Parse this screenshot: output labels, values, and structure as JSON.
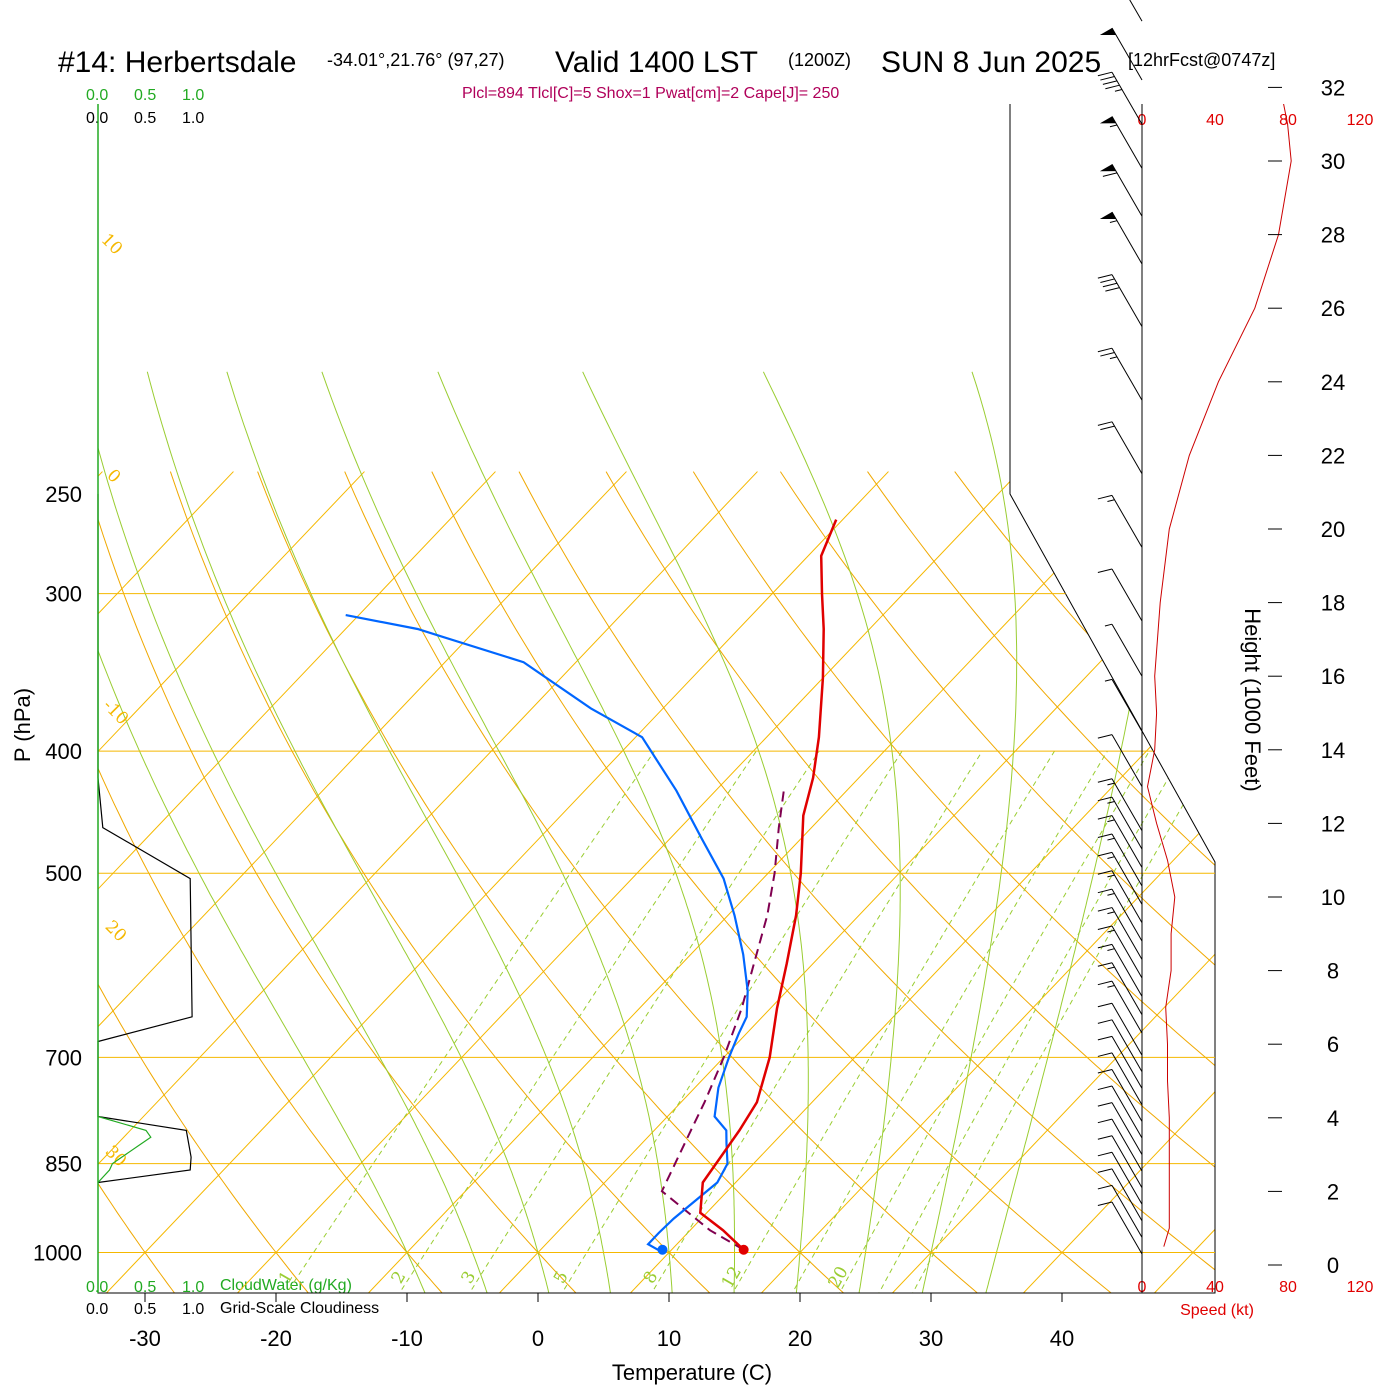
{
  "header": {
    "station": "#14: Herbertsdale",
    "coords": "-34.01°,21.76° (97,27)",
    "valid": "Valid 1400 LST",
    "utc": "(1200Z)",
    "date": "SUN 8 Jun 2025",
    "forecast": "[12hrFcst@0747z]",
    "params": "Plcl=894 Tlcl[C]=5 Shox=1 Pwat[cm]=2 Cape[J]= 250"
  },
  "colors": {
    "temperature": "#e00000",
    "dewpoint": "#0066ff",
    "parcel": "#800050",
    "isotherm": "#f5b800",
    "dry_adiabat": "#f0a800",
    "moist_adiabat": "#9acd32",
    "mixing_ratio": "#9acd32",
    "cloud_water": "#22aa22",
    "cloudiness": "#000000",
    "wind_speed": "#cc0000"
  },
  "cloud_scale": {
    "top_green": [
      "0.0",
      "0.5",
      "1.0"
    ],
    "top_black": [
      "0.0",
      "0.5",
      "1.0"
    ],
    "bottom_green": [
      "0.0",
      "0.5",
      "1.0"
    ],
    "bottom_green_label": "CloudWater (g/Kg)",
    "bottom_black": [
      "0.0",
      "0.5",
      "1.0"
    ],
    "bottom_black_label": "Grid-Scale Cloudiness"
  },
  "speed_scale": {
    "top": [
      "0",
      "40",
      "80",
      "120"
    ],
    "bottom": [
      "0",
      "40",
      "80",
      "120"
    ],
    "label": "Speed (kt)"
  },
  "chart_data": {
    "type": "line",
    "xlabel": "Temperature (C)",
    "ylabel": "P (hPa)",
    "y2label": "Height (1000 Feet)",
    "x_ticks": [
      -30,
      -20,
      -10,
      0,
      10,
      20,
      30,
      40
    ],
    "p_ticks": [
      250,
      300,
      400,
      500,
      700,
      850,
      1000
    ],
    "height_ticks": [
      0,
      2,
      4,
      6,
      8,
      10,
      12,
      14,
      16,
      18,
      20,
      22,
      24,
      26,
      28,
      30,
      32
    ],
    "isotherm_labels": [
      "10",
      "0",
      "-10",
      "20",
      "30",
      "0",
      "10",
      "20",
      "30"
    ],
    "mixing_ratio_labels": [
      "1",
      "2",
      "3",
      "5",
      "8",
      "12",
      "20"
    ],
    "temperature": {
      "name": "Temperature",
      "p": [
        995,
        960,
        930,
        880,
        800,
        760,
        700,
        640,
        590,
        540,
        500,
        450,
        420,
        390,
        350,
        320,
        300,
        280,
        262
      ],
      "t": [
        15.5,
        12.5,
        9.5,
        7.5,
        6.5,
        5.8,
        3.5,
        0.5,
        -2.0,
        -4.8,
        -7.5,
        -11.5,
        -13.5,
        -16.0,
        -20.0,
        -23.5,
        -26.2,
        -29.0,
        -30.5
      ]
    },
    "dewpoint": {
      "name": "Dewpoint",
      "p": [
        998,
        985,
        965,
        940,
        880,
        850,
        820,
        800,
        780,
        740,
        700,
        670,
        650,
        620,
        580,
        540,
        505,
        470,
        430,
        390,
        370,
        340,
        320,
        312
      ],
      "td": [
        9.3,
        7.8,
        7.8,
        7.9,
        8.6,
        8.0,
        6.5,
        5.5,
        3.6,
        1.8,
        0.4,
        -0.6,
        -1.2,
        -3.0,
        -6.0,
        -9.5,
        -13.0,
        -17.5,
        -23.0,
        -29.5,
        -35.5,
        -44.0,
        -54.5,
        -61.0
      ]
    },
    "parcel": {
      "name": "Parcel",
      "p": [
        995,
        960,
        894,
        850,
        800,
        760,
        700,
        640,
        590,
        540,
        500,
        460,
        430
      ],
      "t": [
        15.5,
        11.5,
        5.0,
        4.0,
        2.8,
        1.8,
        0.0,
        -2.2,
        -4.5,
        -7.0,
        -9.5,
        -12.5,
        -14.8
      ]
    },
    "surface_temperature_point": 15.5,
    "surface_dewpoint_point": 9.3,
    "wind_speed_profile": {
      "height_kft": [
        0.5,
        1,
        2,
        3,
        4,
        5,
        6,
        7,
        8,
        9,
        10,
        11,
        12,
        13,
        14,
        15,
        16,
        18,
        20,
        22,
        24,
        26,
        28,
        30,
        31,
        32,
        33.5
      ],
      "speed_kt": [
        12,
        15,
        15,
        15,
        15,
        14,
        14,
        13,
        16,
        16,
        18,
        14,
        8,
        3,
        7,
        8,
        7,
        10,
        15,
        26,
        42,
        62,
        75,
        82,
        80,
        76,
        70
      ]
    },
    "cloudiness_profile": {
      "p": [
        250,
        420,
        460,
        505,
        650,
        680,
        780,
        800,
        840,
        860,
        880
      ],
      "value": [
        0.0,
        0.0,
        0.05,
        0.96,
        0.98,
        0.0,
        0.0,
        0.92,
        0.97,
        0.96,
        0.0
      ]
    },
    "cloud_water_profile": {
      "p": [
        780,
        800,
        810,
        850,
        860,
        880
      ],
      "value": [
        0.0,
        0.5,
        0.55,
        0.15,
        0.12,
        0.0
      ]
    }
  }
}
